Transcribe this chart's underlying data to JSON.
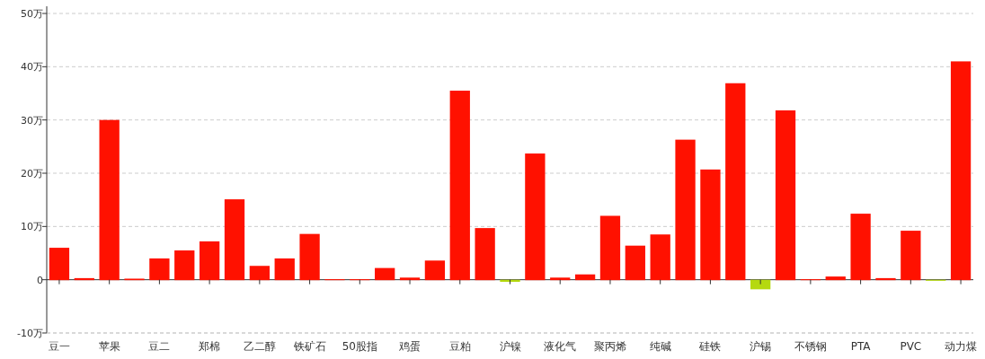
{
  "chart_data": {
    "type": "bar",
    "categories": [
      "豆一",
      null,
      "苹果",
      null,
      "豆二",
      null,
      "郑棉",
      null,
      "乙二醇",
      null,
      "铁矿石",
      null,
      "50股指",
      null,
      "鸡蛋",
      null,
      "豆粕",
      null,
      "沪镍",
      null,
      "液化气",
      null,
      "聚丙烯",
      null,
      "纯碱",
      null,
      "硅铁",
      null,
      "沪锡",
      null,
      "不锈钢",
      null,
      "PTA",
      null,
      "PVC",
      null,
      "动力煤"
    ],
    "values": [
      6,
      0.3,
      30,
      0.2,
      4,
      5.5,
      7.2,
      15.1,
      2.6,
      4,
      8.6,
      0.1,
      0.1,
      2.2,
      0.4,
      3.6,
      35.5,
      9.7,
      -0.4,
      23.7,
      0.4,
      1,
      12,
      6.4,
      8.5,
      26.3,
      20.7,
      36.9,
      -1.8,
      31.8,
      0.1,
      0.6,
      12.4,
      0.3,
      9.2,
      -0.2,
      41
    ],
    "colors": [
      "#ff1100",
      "#ff1100",
      "#ff1100",
      "#ff1100",
      "#ff1100",
      "#ff1100",
      "#ff1100",
      "#ff1100",
      "#ff1100",
      "#ff1100",
      "#ff1100",
      "#ff1100",
      "#ff1100",
      "#ff1100",
      "#ff1100",
      "#ff1100",
      "#ff1100",
      "#ff1100",
      "#b5d90f",
      "#ff1100",
      "#ff1100",
      "#ff1100",
      "#ff1100",
      "#ff1100",
      "#ff1100",
      "#ff1100",
      "#ff1100",
      "#ff1100",
      "#b5d90f",
      "#ff1100",
      "#ff1100",
      "#ff1100",
      "#ff1100",
      "#ff1100",
      "#ff1100",
      "#b5d90f",
      "#ff1100"
    ],
    "ylim": [
      -10,
      50
    ],
    "yticks": [
      {
        "value": -10,
        "label": "-10万"
      },
      {
        "value": 0,
        "label": "0"
      },
      {
        "value": 10,
        "label": "10万"
      },
      {
        "value": 20,
        "label": "20万"
      },
      {
        "value": 30,
        "label": "30万"
      },
      {
        "value": 40,
        "label": "40万"
      },
      {
        "value": 50,
        "label": "50万"
      }
    ],
    "grid": "y"
  }
}
